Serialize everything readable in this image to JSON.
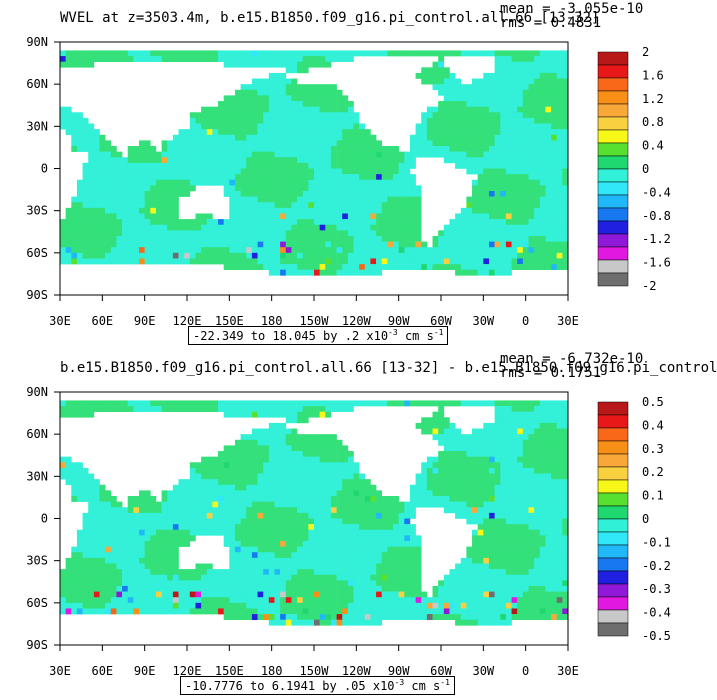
{
  "chart_data": [
    {
      "type": "heatmap",
      "title": "WVEL at z=3503.4m, b.e15.B1850.f09_g16.pi_control.all.66  [13-32]",
      "stats": {
        "mean": "mean = -3.055e-10",
        "rms": "rms = 0.4831"
      },
      "range_text": "-22.349 to 18.045 by .2 x10",
      "range_units": " cm s",
      "range_exp": "-3",
      "range_exp2": "-1",
      "x_ticks": [
        "30E",
        "60E",
        "90E",
        "120E",
        "150E",
        "180",
        "150W",
        "120W",
        "90W",
        "60W",
        "30W",
        "0",
        "30E"
      ],
      "y_ticks": [
        "90N",
        "60N",
        "30N",
        "0",
        "30S",
        "60S",
        "90S"
      ],
      "colorbar_labels": [
        "2",
        "1.6",
        "1.2",
        "0.8",
        "0.4",
        "0",
        "-0.4",
        "-0.8",
        "-1.2",
        "-1.6",
        "-2"
      ],
      "colorbar_range": [
        -2,
        2
      ],
      "grid": false
    },
    {
      "type": "heatmap",
      "title": "b.e15.B1850.f09_g16.pi_control.all.66 [13-32] - b.e15.B1850.f09_g16.pi_control",
      "stats": {
        "mean": "mean = -6.732e-10",
        "rms": "rms = 0.1751"
      },
      "range_text": "-10.7776 to 6.1941 by .05 x10",
      "range_units": " cm s",
      "range_exp": "-3",
      "range_exp2": "-1",
      "x_ticks": [
        "30E",
        "60E",
        "90E",
        "120E",
        "150E",
        "180",
        "150W",
        "120W",
        "90W",
        "60W",
        "30W",
        "0",
        "30E"
      ],
      "y_ticks": [
        "90N",
        "60N",
        "30N",
        "0",
        "30S",
        "60S",
        "90S"
      ],
      "colorbar_labels": [
        "0.5",
        "0.4",
        "0.3",
        "0.2",
        "0.1",
        "0",
        "-0.1",
        "-0.2",
        "-0.3",
        "-0.4",
        "-0.5"
      ],
      "colorbar_range": [
        -0.5,
        0.5
      ],
      "grid": false
    }
  ],
  "colors": {
    "ocean_main": "#33e07a",
    "ocean_alt": "#33f0d8",
    "land": "#ffffff",
    "palette": [
      "#6e6e6e",
      "#c8c8c8",
      "#e018e0",
      "#9018d8",
      "#2020e0",
      "#1878f0",
      "#20b8f8",
      "#30e8f8",
      "#30f0d8",
      "#20d870",
      "#58e030",
      "#f8f818",
      "#f8d040",
      "#f8a838",
      "#f89018",
      "#f86818",
      "#e81818",
      "#b81818"
    ]
  }
}
